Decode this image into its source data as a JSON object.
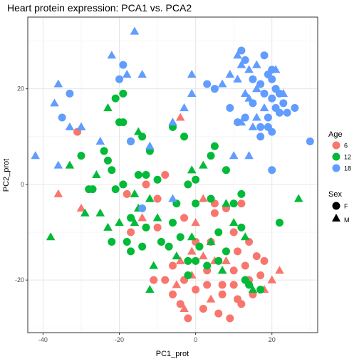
{
  "chart_data": {
    "type": "scatter",
    "title": "Heart protein expression: PCA1 vs. PCA2",
    "xlabel": "PC1_prot",
    "ylabel": "PC2_prot",
    "xlim": [
      -44,
      32
    ],
    "ylim": [
      -31,
      35
    ],
    "x_ticks": [
      -40,
      -20,
      0,
      20
    ],
    "y_ticks": [
      -20,
      0,
      20
    ],
    "grid": true,
    "color_legend": {
      "title": "Age",
      "entries": [
        {
          "label": "6",
          "color": "#F8766D"
        },
        {
          "label": "12",
          "color": "#00BA38"
        },
        {
          "label": "18",
          "color": "#619CFF"
        }
      ]
    },
    "shape_legend": {
      "title": "Sex",
      "entries": [
        {
          "label": "F",
          "shape": "circle"
        },
        {
          "label": "M",
          "shape": "triangle"
        }
      ]
    },
    "series": [
      {
        "name": "6",
        "color": "#F8766D",
        "points": [
          [
            -31,
            11,
            "F"
          ],
          [
            -4,
            14,
            "M"
          ],
          [
            -8,
            2,
            "F"
          ],
          [
            -13,
            0,
            "F"
          ],
          [
            -18,
            -2,
            "F"
          ],
          [
            -36,
            -2,
            "M"
          ],
          [
            -30,
            -5,
            "M"
          ],
          [
            -14,
            -7,
            "M"
          ],
          [
            -10,
            -9,
            "F"
          ],
          [
            -3,
            -7,
            "F"
          ],
          [
            0,
            -8,
            "M"
          ],
          [
            2,
            -3,
            "M"
          ],
          [
            5,
            -4,
            "F"
          ],
          [
            5,
            -6,
            "F"
          ],
          [
            8,
            -5,
            "F"
          ],
          [
            12,
            -4,
            "F"
          ],
          [
            10,
            -10,
            "F"
          ],
          [
            14,
            -12,
            "F"
          ],
          [
            0,
            -12,
            "F"
          ],
          [
            4,
            -12,
            "F"
          ],
          [
            -4,
            -16,
            "M"
          ],
          [
            -6,
            -17,
            "F"
          ],
          [
            -1,
            -14,
            "M"
          ],
          [
            2,
            -15,
            "M"
          ],
          [
            5,
            -16,
            "M"
          ],
          [
            8,
            -16,
            "M"
          ],
          [
            10,
            -18,
            "F"
          ],
          [
            13,
            -17,
            "F"
          ],
          [
            16,
            -15,
            "F"
          ],
          [
            18,
            -16,
            "F"
          ],
          [
            22,
            -18,
            "M"
          ],
          [
            14,
            -20,
            "F"
          ],
          [
            10,
            -21,
            "F"
          ],
          [
            7,
            -21,
            "F"
          ],
          [
            3,
            -21,
            "F"
          ],
          [
            -1,
            -19,
            "M"
          ],
          [
            -3,
            -20,
            "F"
          ],
          [
            -5,
            -21,
            "M"
          ],
          [
            -8,
            -20,
            "F"
          ],
          [
            -11,
            -20,
            "F"
          ],
          [
            -6,
            -23,
            "F"
          ],
          [
            -3,
            -26,
            "M"
          ],
          [
            2,
            -26,
            "F"
          ],
          [
            4,
            -24,
            "M"
          ],
          [
            7,
            -23,
            "F"
          ],
          [
            11,
            -24,
            "F"
          ],
          [
            15,
            -23,
            "F"
          ],
          [
            18,
            -22,
            "M"
          ],
          [
            20,
            -20,
            "M"
          ],
          [
            6,
            -27,
            "F"
          ],
          [
            9,
            -28,
            "F"
          ],
          [
            12,
            -25,
            "F"
          ],
          [
            17,
            -19,
            "F"
          ],
          [
            -17,
            -10,
            "F"
          ],
          [
            -10,
            -3,
            "F"
          ],
          [
            0,
            -22,
            "F"
          ],
          [
            3,
            -18,
            "F"
          ],
          [
            -4,
            -25,
            "F"
          ],
          [
            7,
            -18,
            "M"
          ],
          [
            -2,
            -28,
            "F"
          ],
          [
            11,
            -14,
            "F"
          ]
        ]
      },
      {
        "name": "12",
        "color": "#00BA38",
        "points": [
          [
            -30,
            12,
            "M"
          ],
          [
            -21,
            18,
            "F"
          ],
          [
            -19,
            19,
            "F"
          ],
          [
            -23,
            16,
            "M"
          ],
          [
            -20,
            13,
            "F"
          ],
          [
            -15,
            11,
            "M"
          ],
          [
            -14,
            10,
            "F"
          ],
          [
            -17,
            9,
            "F"
          ],
          [
            -12,
            7,
            "F"
          ],
          [
            -6,
            12,
            "F"
          ],
          [
            -3,
            10,
            "F"
          ],
          [
            -19,
            13,
            "F"
          ],
          [
            -33,
            4,
            "M"
          ],
          [
            -30,
            6,
            "F"
          ],
          [
            -24,
            7,
            "F"
          ],
          [
            -23,
            5,
            "F"
          ],
          [
            -26,
            2,
            "M"
          ],
          [
            -22,
            3,
            "F"
          ],
          [
            -15,
            2,
            "F"
          ],
          [
            -13,
            2,
            "F"
          ],
          [
            -10,
            1,
            "F"
          ],
          [
            -19,
            0,
            "F"
          ],
          [
            -28,
            -1,
            "F"
          ],
          [
            -27,
            -1,
            "F"
          ],
          [
            -21,
            -1,
            "F"
          ],
          [
            -16,
            -2,
            "M"
          ],
          [
            -2,
            0,
            "F"
          ],
          [
            -1,
            3,
            "M"
          ],
          [
            0,
            1,
            "F"
          ],
          [
            2,
            4,
            "M"
          ],
          [
            4,
            6,
            "F"
          ],
          [
            5,
            8,
            "F"
          ],
          [
            8,
            3,
            "F"
          ],
          [
            -5,
            -4,
            "F"
          ],
          [
            -12,
            -3,
            "M"
          ],
          [
            -15,
            -5,
            "M"
          ],
          [
            -17,
            -7,
            "F"
          ],
          [
            -20,
            -8,
            "M"
          ],
          [
            -23,
            -9,
            "M"
          ],
          [
            -25,
            -6,
            "M"
          ],
          [
            -29,
            -6,
            "M"
          ],
          [
            -38,
            -11,
            "M"
          ],
          [
            -16,
            -8,
            "M"
          ],
          [
            -13,
            -9,
            "F"
          ],
          [
            -10,
            -7,
            "M"
          ],
          [
            -6,
            -8,
            "F"
          ],
          [
            -4,
            -11,
            "F"
          ],
          [
            -1,
            -11,
            "M"
          ],
          [
            1,
            -13,
            "F"
          ],
          [
            4,
            -12,
            "M"
          ],
          [
            6,
            -10,
            "F"
          ],
          [
            10,
            -8,
            "M"
          ],
          [
            12,
            -9,
            "F"
          ],
          [
            13,
            -11,
            "M"
          ],
          [
            8,
            -14,
            "F"
          ],
          [
            6,
            -16,
            "F"
          ],
          [
            3,
            -17,
            "F"
          ],
          [
            0,
            -16,
            "F"
          ],
          [
            -2,
            -16,
            "F"
          ],
          [
            -5,
            -15,
            "M"
          ],
          [
            -11,
            -17,
            "M"
          ],
          [
            -14,
            -13,
            "F"
          ],
          [
            -17,
            -14,
            "F"
          ],
          [
            -9,
            -12,
            "F"
          ],
          [
            7,
            -18,
            "M"
          ],
          [
            13,
            -20,
            "F"
          ],
          [
            15,
            -22,
            "M"
          ],
          [
            17,
            -22,
            "F"
          ],
          [
            14,
            -21,
            "F"
          ],
          [
            22,
            -8,
            "F"
          ],
          [
            27,
            -3,
            "M"
          ],
          [
            4,
            -3,
            "F"
          ],
          [
            8,
            -4,
            "M"
          ],
          [
            10,
            -4,
            "F"
          ],
          [
            12,
            -2,
            "F"
          ],
          [
            -22,
            -12,
            "F"
          ],
          [
            -7,
            -13,
            "F"
          ],
          [
            -12,
            -22,
            "M"
          ],
          [
            -2,
            -19,
            "F"
          ],
          [
            -18,
            -12,
            "F"
          ],
          [
            0,
            -4,
            "F"
          ]
        ]
      },
      {
        "name": "18",
        "color": "#619CFF",
        "points": [
          [
            -16,
            32,
            "M"
          ],
          [
            -22,
            27,
            "M"
          ],
          [
            -19,
            25,
            "F"
          ],
          [
            -14,
            23,
            "M"
          ],
          [
            -18,
            23,
            "M"
          ],
          [
            -20,
            22,
            "F"
          ],
          [
            -36,
            21,
            "M"
          ],
          [
            -33,
            19,
            "F"
          ],
          [
            -37,
            17,
            "M"
          ],
          [
            -35,
            14,
            "F"
          ],
          [
            -33,
            12,
            "M"
          ],
          [
            -30,
            12,
            "M"
          ],
          [
            -42,
            6,
            "M"
          ],
          [
            -36,
            4,
            "M"
          ],
          [
            -17,
            9,
            "F"
          ],
          [
            -12,
            8,
            "M"
          ],
          [
            -6,
            13,
            "M"
          ],
          [
            -3,
            16,
            "M"
          ],
          [
            -1,
            23,
            "M"
          ],
          [
            3,
            21,
            "F"
          ],
          [
            7,
            21,
            "M"
          ],
          [
            9,
            23,
            "M"
          ],
          [
            12,
            28,
            "F"
          ],
          [
            11,
            27,
            "M"
          ],
          [
            13,
            26,
            "F"
          ],
          [
            12,
            25,
            "M"
          ],
          [
            14,
            24,
            "M"
          ],
          [
            15,
            22,
            "F"
          ],
          [
            17,
            21,
            "F"
          ],
          [
            19,
            23,
            "F"
          ],
          [
            20,
            22,
            "F"
          ],
          [
            18,
            19,
            "F"
          ],
          [
            21,
            20,
            "F"
          ],
          [
            16,
            20,
            "M"
          ],
          [
            22,
            19,
            "F"
          ],
          [
            14,
            18,
            "M"
          ],
          [
            15,
            17,
            "F"
          ],
          [
            18,
            16,
            "M"
          ],
          [
            20,
            18,
            "F"
          ],
          [
            21,
            16,
            "F"
          ],
          [
            23,
            17,
            "F"
          ],
          [
            22,
            15,
            "F"
          ],
          [
            24,
            15,
            "F"
          ],
          [
            19,
            14,
            "F"
          ],
          [
            16,
            14,
            "M"
          ],
          [
            13,
            14,
            "F"
          ],
          [
            12,
            13,
            "M"
          ],
          [
            15,
            12,
            "M"
          ],
          [
            17,
            12,
            "F"
          ],
          [
            19,
            12,
            "F"
          ],
          [
            20,
            11,
            "F"
          ],
          [
            17,
            10,
            "F"
          ],
          [
            11,
            22,
            "M"
          ],
          [
            9,
            16,
            "F"
          ],
          [
            30,
            9,
            "F"
          ],
          [
            20,
            3,
            "F"
          ],
          [
            14,
            6,
            "M"
          ],
          [
            10,
            6,
            "M"
          ],
          [
            -25,
            9,
            "M"
          ],
          [
            -14,
            -5,
            "F"
          ],
          [
            -6,
            -3,
            "M"
          ],
          [
            18,
            27,
            "F"
          ],
          [
            16,
            25,
            "M"
          ],
          [
            13,
            19,
            "M"
          ],
          [
            21,
            24,
            "M"
          ],
          [
            20,
            24,
            "F"
          ],
          [
            23,
            19,
            "M"
          ],
          [
            26,
            16,
            "F"
          ],
          [
            11,
            13,
            "F"
          ],
          [
            -1,
            19,
            "M"
          ],
          [
            5,
            20,
            "F"
          ]
        ]
      }
    ]
  }
}
